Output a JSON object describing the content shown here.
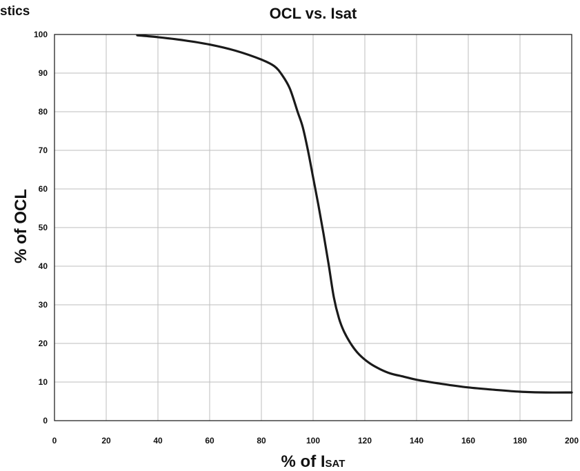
{
  "header_fragment": "stics",
  "chart_data": {
    "type": "line",
    "title": "OCL vs. Isat",
    "ylabel": "% of OCL",
    "xlabel_main": "% of I",
    "xlabel_sub": "SAT",
    "xlim": [
      0,
      200
    ],
    "ylim": [
      0,
      100
    ],
    "xticks": [
      0,
      20,
      40,
      60,
      80,
      100,
      120,
      140,
      160,
      180,
      200
    ],
    "yticks": [
      0,
      10,
      20,
      30,
      40,
      50,
      60,
      70,
      80,
      90,
      100
    ],
    "grid": true,
    "series": [
      {
        "x": [
          32,
          40,
          50,
          60,
          70,
          80,
          85,
          88,
          91,
          94,
          96,
          98,
          100,
          102,
          104,
          106,
          108,
          110,
          112,
          115,
          118,
          122,
          126,
          130,
          135,
          140,
          150,
          160,
          170,
          180,
          190,
          200
        ],
        "y": [
          99.8,
          99.3,
          98.5,
          97.4,
          95.8,
          93.5,
          91.8,
          89.5,
          86,
          80,
          76,
          70,
          63,
          56,
          48.5,
          40.5,
          32,
          26.5,
          23,
          19.5,
          17,
          14.8,
          13.3,
          12.2,
          11.4,
          10.6,
          9.5,
          8.6,
          8,
          7.5,
          7.3,
          7.3
        ]
      }
    ]
  }
}
